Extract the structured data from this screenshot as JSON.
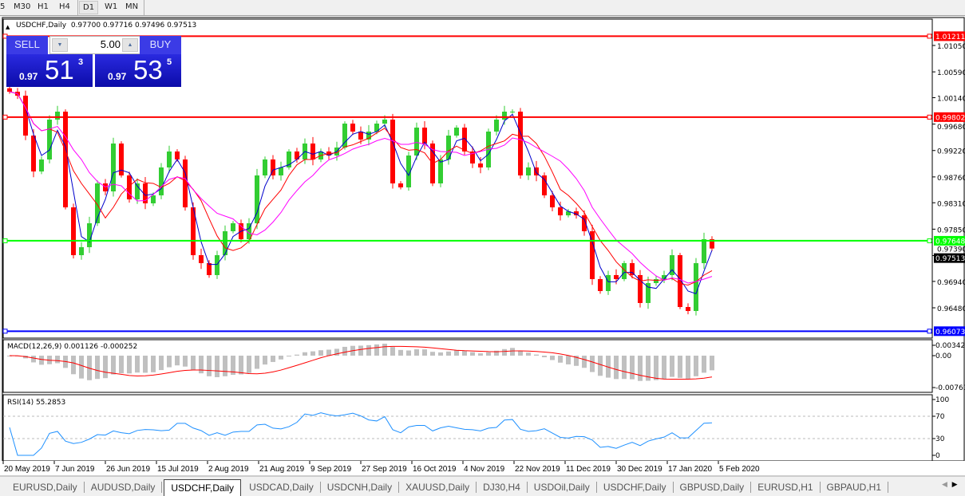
{
  "toolbar": {
    "timeframes": [
      "5",
      "M30",
      "H1",
      "H4",
      "D1",
      "W1",
      "MN"
    ],
    "selected": "D1"
  },
  "chart": {
    "symbol_label": "USDCHF,Daily",
    "ohlc_label": "0.97700 0.97716 0.97496 0.97513",
    "price_axis": [
      "1.01050",
      "1.00590",
      "1.00140",
      "0.99680",
      "0.99220",
      "0.98760",
      "0.98310",
      "0.97850",
      "0.97390",
      "0.96940",
      "0.96480"
    ],
    "hlines": [
      {
        "price": "1.01211",
        "color": "#ff0000"
      },
      {
        "price": "0.99802",
        "color": "#ff0000"
      },
      {
        "price": "0.97648",
        "color": "#00ff00"
      },
      {
        "price": "0.96073",
        "color": "#0000ff"
      }
    ],
    "current_price": "0.97513",
    "bull_color": "#32cd32",
    "bear_color": "#ff0000",
    "closes": [
      1.00244,
      1.00175,
      0.9948,
      0.98855,
      0.99064,
      0.99758,
      0.99897,
      0.9823,
      0.97397,
      0.97536,
      0.97953,
      0.98647,
      0.98508,
      0.99342,
      0.98786,
      0.98369,
      0.98647,
      0.983,
      0.98439,
      0.98925,
      0.99203,
      0.99064,
      0.9823,
      0.97397,
      0.97258,
      0.9705,
      0.97397,
      0.97814,
      0.97953,
      0.97675,
      0.97953,
      0.98786,
      0.99064,
      0.98786,
      0.98925,
      0.99203,
      0.99064,
      0.99342,
      0.99064,
      0.99203,
      0.99133,
      0.99272,
      0.99689,
      0.9955,
      0.99411,
      0.9955,
      0.99689,
      0.99758,
      0.98647,
      0.98578,
      0.99133,
      0.99619,
      0.99342,
      0.98647,
      0.99064,
      0.9948,
      0.99619,
      0.99203,
      0.98994,
      0.98925,
      0.9955,
      0.99758,
      0.99897,
      0.99897,
      0.98786,
      0.98925,
      0.98786,
      0.98439,
      0.9823,
      0.98091,
      0.98161,
      0.98091,
      0.97814,
      0.9698,
      0.96772,
      0.9705,
      0.9698,
      0.97258,
      0.9705,
      0.96564,
      0.96911,
      0.9698,
      0.9705,
      0.97397,
      0.96494,
      0.96425,
      0.97258,
      0.97675,
      0.97513
    ],
    "date_axis": [
      "20 May 2019",
      "7 Jun 2019",
      "26 Jun 2019",
      "15 Jul 2019",
      "2 Aug 2019",
      "21 Aug 2019",
      "9 Sep 2019",
      "27 Sep 2019",
      "16 Oct 2019",
      "4 Nov 2019",
      "22 Nov 2019",
      "11 Dec 2019",
      "30 Dec 2019",
      "17 Jan 2020",
      "5 Feb 2020"
    ]
  },
  "macd": {
    "label": "MACD(12,26,9) 0.001126 -0.000252",
    "axis": [
      "0.003428",
      "0.00",
      "-0.007615"
    ]
  },
  "rsi": {
    "label": "RSI(14) 55.2853",
    "axis": [
      "100",
      "70",
      "30",
      "0"
    ]
  },
  "trade_panel": {
    "sell_label": "SELL",
    "buy_label": "BUY",
    "lot": "5.00",
    "sell": {
      "prefix": "0.97",
      "big": "51",
      "sup": "3"
    },
    "buy": {
      "prefix": "0.97",
      "big": "53",
      "sup": "5"
    }
  },
  "tabs": [
    "EURUSD,Daily",
    "AUDUSD,Daily",
    "USDCHF,Daily",
    "USDCAD,Daily",
    "USDCNH,Daily",
    "XAUUSD,Daily",
    "DJ30,H4",
    "USDOil,Daily",
    "USDCHF,Daily",
    "GBPUSD,Daily",
    "EURUSD,H1",
    "GBPAUD,H1"
  ],
  "active_tab": 2
}
